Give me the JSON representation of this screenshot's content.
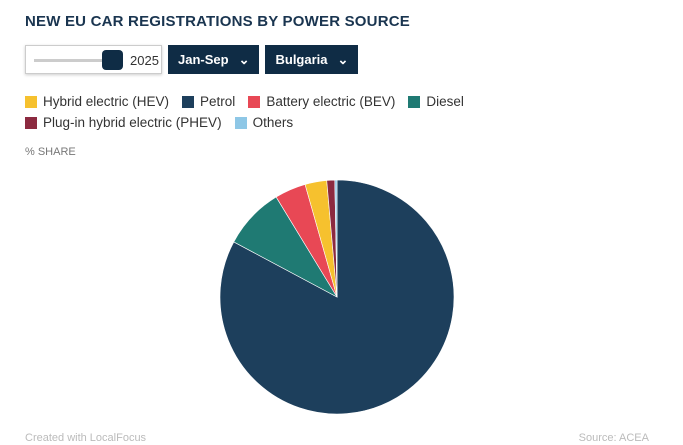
{
  "title": "NEW EU CAR REGISTRATIONS BY POWER SOURCE",
  "controls": {
    "year": "2025",
    "period": "Jan-Sep",
    "country": "Bulgaria"
  },
  "legend": [
    {
      "label": "Hybrid electric (HEV)",
      "color": "#f6c12e"
    },
    {
      "label": "Petrol",
      "color": "#1d3f5c"
    },
    {
      "label": "Battery electric (BEV)",
      "color": "#e84855"
    },
    {
      "label": "Diesel",
      "color": "#1f7a73"
    },
    {
      "label": "Plug-in hybrid electric (PHEV)",
      "color": "#8c2a40"
    },
    {
      "label": "Others",
      "color": "#8ec7e6"
    }
  ],
  "unit": "% SHARE",
  "footer": {
    "left": "Created with LocalFocus",
    "right": "Source: ACEA"
  },
  "chart_data": {
    "type": "pie",
    "title": "NEW EU CAR REGISTRATIONS BY POWER SOURCE",
    "unit": "% share",
    "slices": [
      {
        "name": "Petrol",
        "value": 82.8,
        "color": "#1d3f5c"
      },
      {
        "name": "Diesel",
        "value": 8.5,
        "color": "#1f7a73"
      },
      {
        "name": "Battery electric (BEV)",
        "value": 4.3,
        "color": "#e84855"
      },
      {
        "name": "Hybrid electric (HEV)",
        "value": 3.0,
        "color": "#f6c12e"
      },
      {
        "name": "Plug-in hybrid electric (PHEV)",
        "value": 1.1,
        "color": "#8c2a40"
      },
      {
        "name": "Others",
        "value": 0.3,
        "color": "#8ec7e6"
      }
    ]
  }
}
